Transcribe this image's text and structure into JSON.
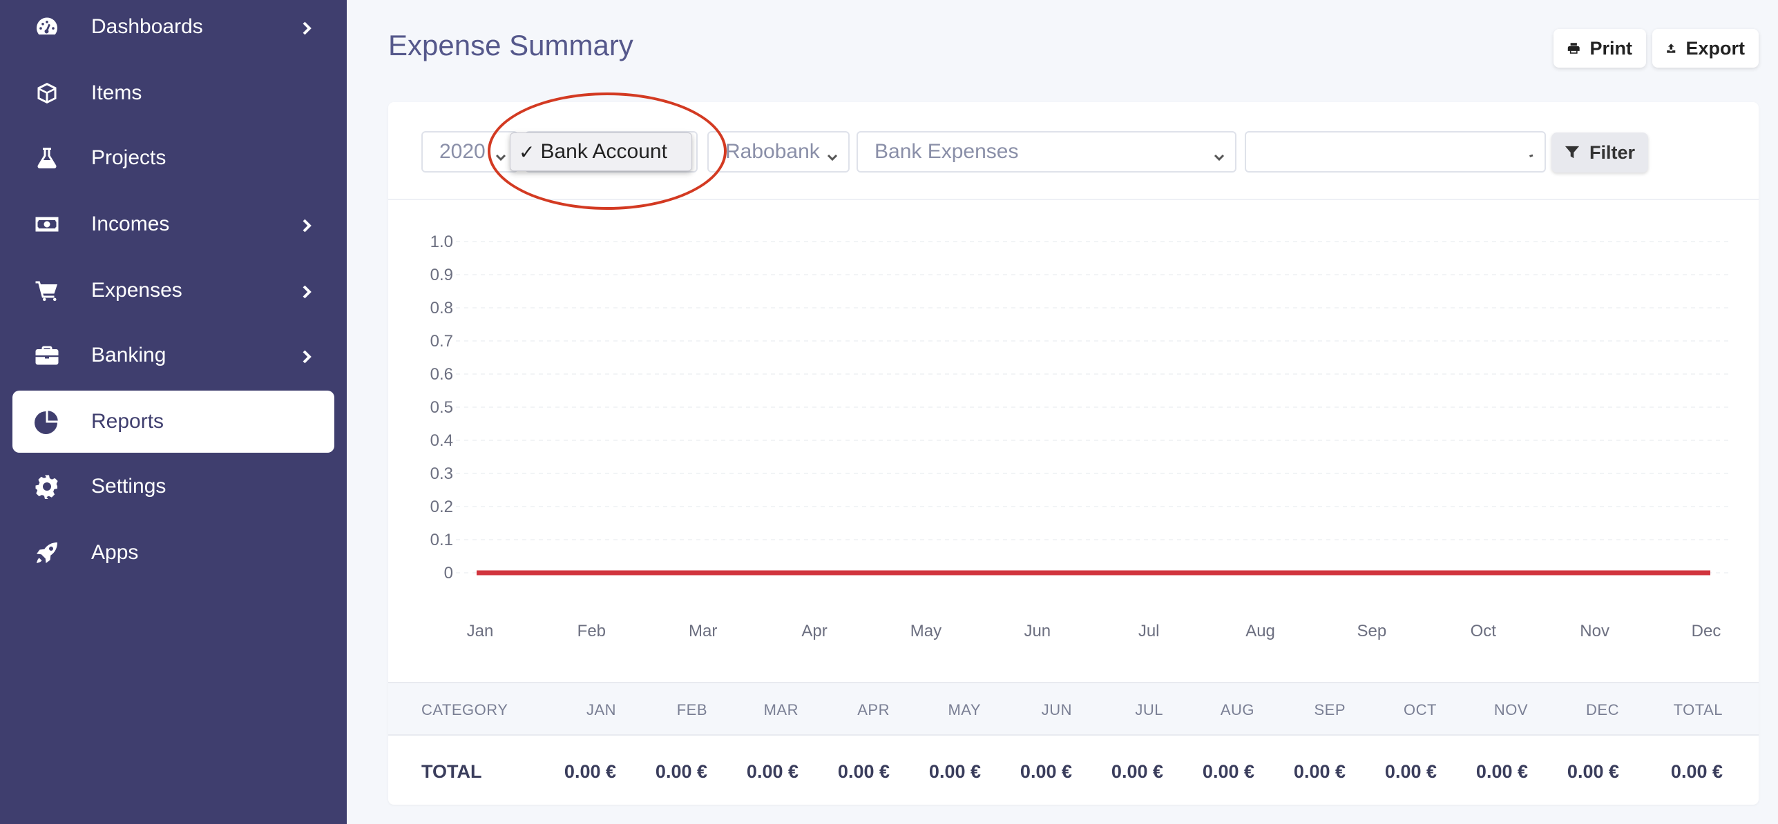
{
  "sidebar": {
    "items": [
      {
        "label": "Dashboards",
        "icon": "dashboard-icon",
        "has_chevron": true
      },
      {
        "label": "Items",
        "icon": "box-icon",
        "has_chevron": false
      },
      {
        "label": "Projects",
        "icon": "flask-icon",
        "has_chevron": false
      },
      {
        "label": "Incomes",
        "icon": "money-icon",
        "has_chevron": true
      },
      {
        "label": "Expenses",
        "icon": "cart-icon",
        "has_chevron": true
      },
      {
        "label": "Banking",
        "icon": "briefcase-icon",
        "has_chevron": true
      },
      {
        "label": "Reports",
        "icon": "pie-chart-icon",
        "has_chevron": false,
        "active": true
      },
      {
        "label": "Settings",
        "icon": "gear-icon",
        "has_chevron": false
      },
      {
        "label": "Apps",
        "icon": "rocket-icon",
        "has_chevron": false
      }
    ]
  },
  "header": {
    "title": "Expense Summary",
    "print_label": "Print",
    "export_label": "Export"
  },
  "filters": {
    "year": "2020",
    "account_type_selected": "Bank Account",
    "account_type_check": "✓",
    "bank": "Rabobank",
    "category": "Bank Expenses",
    "extra": "",
    "filter_label": "Filter"
  },
  "colors": {
    "sidebar_bg": "#3f3e6e",
    "accent_line": "#d1343d",
    "highlight": "#d33a22"
  },
  "chart_data": {
    "type": "line",
    "categories": [
      "Jan",
      "Feb",
      "Mar",
      "Apr",
      "May",
      "Jun",
      "Jul",
      "Aug",
      "Sep",
      "Oct",
      "Nov",
      "Dec"
    ],
    "series": [
      {
        "values": [
          0,
          0,
          0,
          0,
          0,
          0,
          0,
          0,
          0,
          0,
          0,
          0
        ],
        "color": "#d1343d"
      }
    ],
    "yticks": [
      "1.0",
      "0.9",
      "0.8",
      "0.7",
      "0.6",
      "0.5",
      "0.4",
      "0.3",
      "0.2",
      "0.1",
      "0"
    ],
    "ylim": [
      0,
      1
    ],
    "grid": true
  },
  "table": {
    "headers": [
      "CATEGORY",
      "JAN",
      "FEB",
      "MAR",
      "APR",
      "MAY",
      "JUN",
      "JUL",
      "AUG",
      "SEP",
      "OCT",
      "NOV",
      "DEC",
      "TOTAL"
    ],
    "total_row": {
      "label": "TOTAL",
      "values": [
        "0.00 €",
        "0.00 €",
        "0.00 €",
        "0.00 €",
        "0.00 €",
        "0.00 €",
        "0.00 €",
        "0.00 €",
        "0.00 €",
        "0.00 €",
        "0.00 €",
        "0.00 €",
        "0.00 €"
      ]
    }
  }
}
